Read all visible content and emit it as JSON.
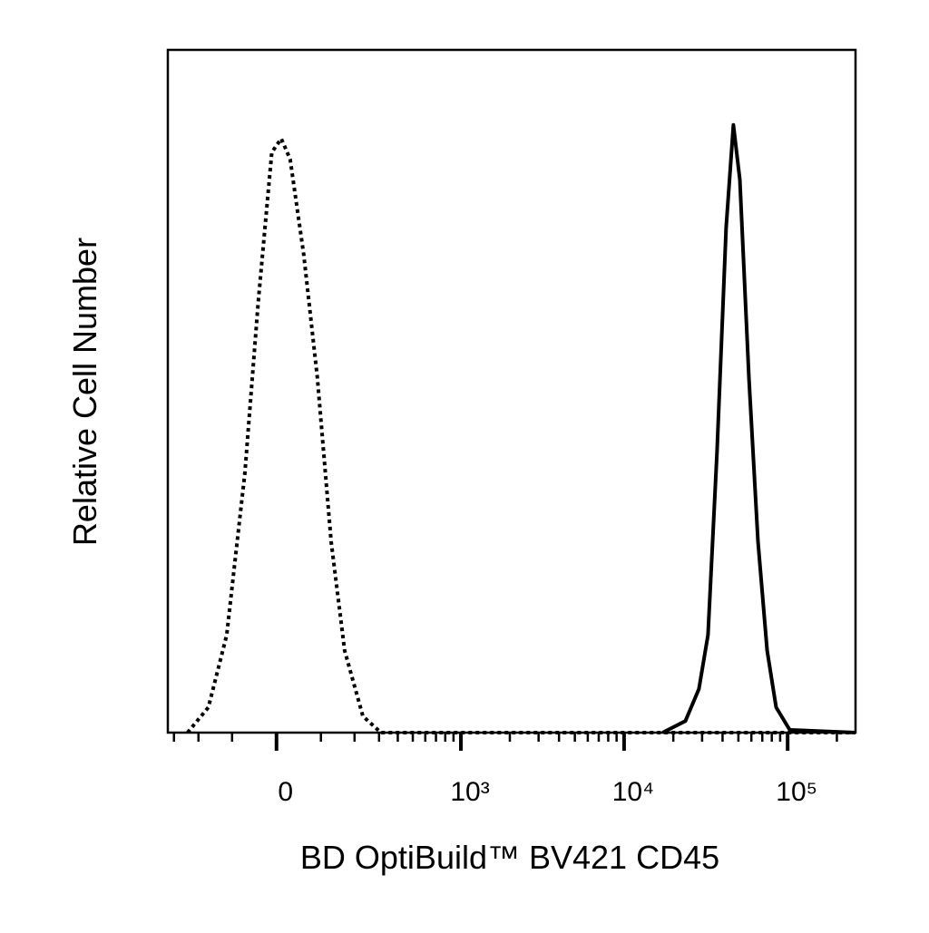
{
  "chart_data": {
    "type": "line",
    "xlabel": "BD OptiBuild™ BV421 CD45",
    "ylabel": "Relative Cell Number",
    "xscale": "asinh",
    "xcofactor": 150,
    "xlim": [
      -330,
      260000
    ],
    "ylim": [
      0,
      100
    ],
    "xticks": [
      0,
      {
        "value": 1000,
        "label": "10³"
      },
      {
        "value": 10000,
        "label": "10⁴"
      },
      {
        "value": 100000,
        "label": "10⁵"
      }
    ],
    "xminor_ticks": [
      -300,
      -200,
      -100,
      100,
      200,
      300,
      400,
      500,
      600,
      700,
      800,
      900,
      2000,
      3000,
      4000,
      5000,
      6000,
      7000,
      8000,
      9000,
      20000,
      30000,
      40000,
      50000,
      60000,
      70000,
      80000,
      90000,
      200000
    ],
    "series": [
      {
        "color": "#000000",
        "dash": true,
        "x": [
          -241,
          -167,
          -114,
          -69,
          -39,
          -10,
          10,
          29,
          59,
          91,
          127,
          167,
          231,
          309,
          260000
        ],
        "values": [
          0,
          3.7,
          14.3,
          38,
          63,
          85,
          87,
          84,
          70,
          52,
          28,
          12,
          2.4,
          0,
          0
        ]
      },
      {
        "color": "#000000",
        "dash": false,
        "x": [
          17200,
          23700,
          28700,
          32600,
          37000,
          42100,
          46600,
          51000,
          58000,
          65900,
          74900,
          85100,
          103000,
          260000
        ],
        "values": [
          0,
          1.7,
          6.4,
          14.3,
          41,
          74,
          89,
          81,
          52,
          28,
          12,
          3.7,
          0.4,
          0
        ]
      }
    ]
  }
}
